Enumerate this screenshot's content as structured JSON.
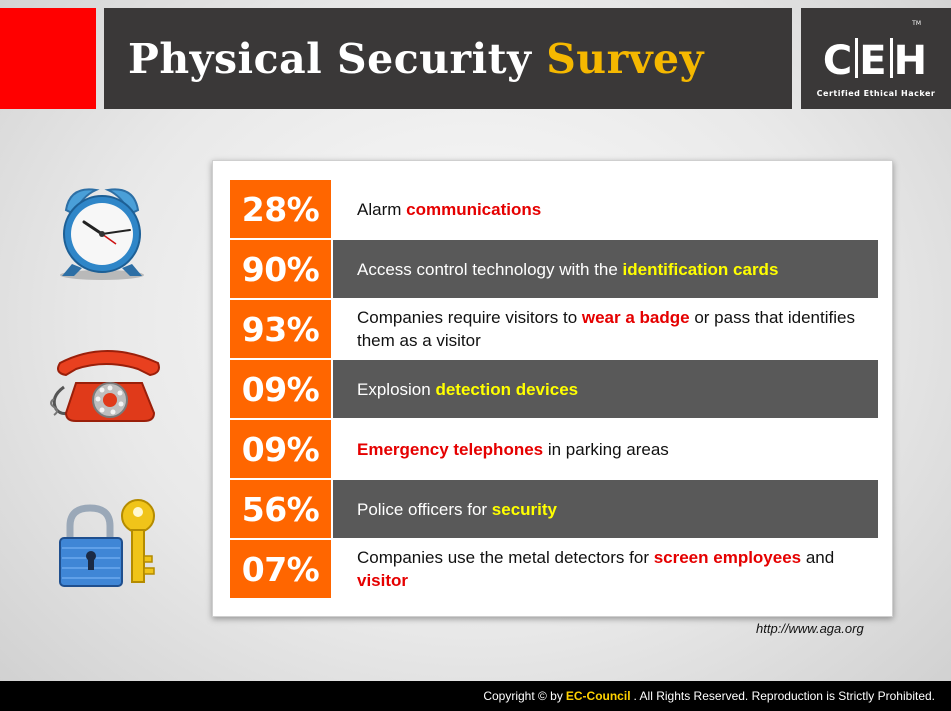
{
  "header": {
    "title_main": "Physical Security ",
    "title_accent": "Survey",
    "logo_letters_left": "C",
    "logo_letters_mid": "E",
    "logo_letters_right": "H",
    "logo_subtitle": "Certified   Ethical   Hacker",
    "logo_tm": "TM"
  },
  "rows": [
    {
      "percent": "28%",
      "style": "light",
      "parts": [
        {
          "text": "Alarm ",
          "hl": ""
        },
        {
          "text": "communications",
          "hl": "red"
        }
      ]
    },
    {
      "percent": "90%",
      "style": "dark",
      "parts": [
        {
          "text": "Access control technology with the ",
          "hl": ""
        },
        {
          "text": "identification cards",
          "hl": "yellow"
        }
      ]
    },
    {
      "percent": "93%",
      "style": "light",
      "parts": [
        {
          "text": "Companies require visitors to ",
          "hl": ""
        },
        {
          "text": "wear a badge",
          "hl": "red"
        },
        {
          "text": " or pass that identifies them as a visitor",
          "hl": ""
        }
      ]
    },
    {
      "percent": "09%",
      "style": "dark",
      "parts": [
        {
          "text": "Explosion ",
          "hl": ""
        },
        {
          "text": "detection devices",
          "hl": "yellow"
        }
      ]
    },
    {
      "percent": "09%",
      "style": "light",
      "parts": [
        {
          "text": "Emergency telephones",
          "hl": "red"
        },
        {
          "text": " in parking areas",
          "hl": ""
        }
      ]
    },
    {
      "percent": "56%",
      "style": "dark",
      "parts": [
        {
          "text": "Police officers for ",
          "hl": ""
        },
        {
          "text": "security",
          "hl": "yellow"
        }
      ]
    },
    {
      "percent": "07%",
      "style": "light",
      "parts": [
        {
          "text": "Companies use the metal detectors for ",
          "hl": ""
        },
        {
          "text": "screen employees",
          "hl": "red"
        },
        {
          "text": " and ",
          "hl": ""
        },
        {
          "text": "visitor",
          "hl": "red"
        }
      ]
    }
  ],
  "icons": [
    "alarm-clock-icon",
    "telephone-icon",
    "padlock-key-icon"
  ],
  "source": "http://www.aga.org",
  "footer": {
    "prefix": "Copyright © by ",
    "brand": "EC-Council",
    "suffix": ". All Rights Reserved. Reproduction is Strictly Prohibited."
  },
  "colors": {
    "accent_orange": "#ff6600",
    "title_yellow": "#f5b800",
    "highlight_red": "#e50000",
    "highlight_yellow": "#ffff00",
    "dark_band": "#595959",
    "header_bg": "#3a3838",
    "red_block": "#ff0000"
  }
}
